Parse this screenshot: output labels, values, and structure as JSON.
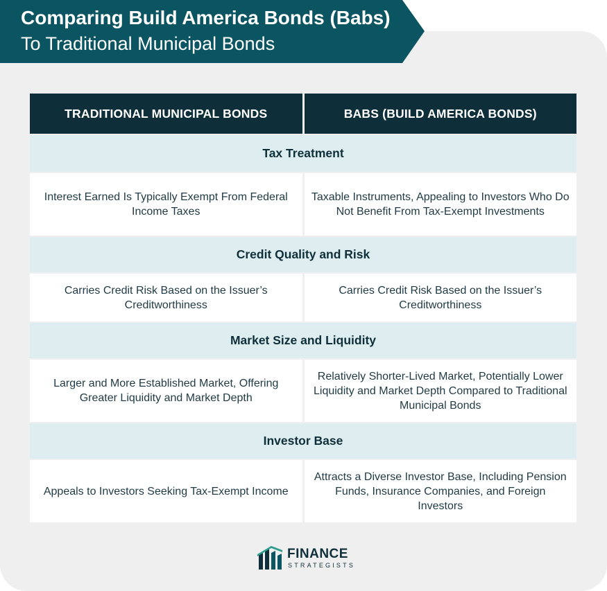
{
  "title": {
    "line1": "Comparing Build America Bonds (Babs)",
    "line2": "To Traditional Municipal Bonds"
  },
  "columns": [
    "TRADITIONAL MUNICIPAL BONDS",
    "BABS (BUILD AMERICA BONDS)"
  ],
  "sections": [
    {
      "heading": "Tax Treatment",
      "traditional": "Interest Earned Is Typically Exempt From Federal Income Taxes",
      "babs": "Taxable Instruments, Appealing to Investors Who Do Not Benefit From Tax-Exempt Investments"
    },
    {
      "heading": "Credit Quality and Risk",
      "traditional": "Carries Credit Risk Based on the Issuer’s Creditworthiness",
      "babs": "Carries Credit Risk Based on the Issuer’s Creditworthiness"
    },
    {
      "heading": "Market Size and Liquidity",
      "traditional": "Larger and More Established Market, Offering Greater Liquidity and Market Depth",
      "babs": "Relatively Shorter-Lived Market, Potentially Lower Liquidity and Market Depth Compared to Traditional Municipal Bonds"
    },
    {
      "heading": "Investor Base",
      "traditional": "Appeals to Investors Seeking Tax-Exempt Income",
      "babs": "Attracts a Diverse Investor Base, Including Pension Funds, Insurance Companies, and Foreign Investors"
    }
  ],
  "logo": {
    "name": "FINANCE",
    "sub": "STRATEGISTS",
    "icon": "finance-strategists-logo-icon"
  },
  "colors": {
    "banner": "#0b5563",
    "header": "#0e2f3a",
    "section": "#deeef0",
    "background": "#efefef"
  }
}
